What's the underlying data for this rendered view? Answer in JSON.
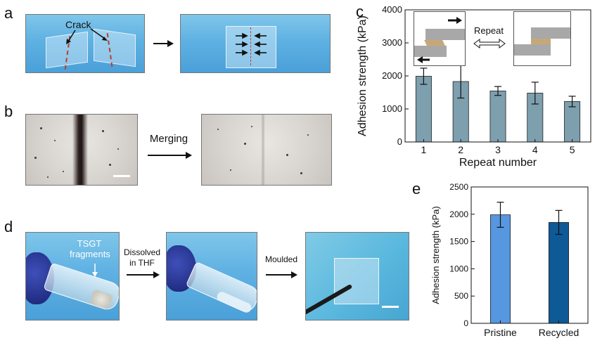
{
  "panels": {
    "a": {
      "letter": "a",
      "crack_label": "Crack"
    },
    "b": {
      "letter": "b",
      "arrow_label": "Merging"
    },
    "c": {
      "letter": "c",
      "inset_label": "Repeat"
    },
    "d": {
      "letter": "d",
      "fragments_label": "TSGT fragments",
      "step1_label": "Dissolved in THF",
      "step2_label": "Moulded"
    },
    "e": {
      "letter": "e"
    }
  },
  "colors": {
    "bar_c": "#7d9fae",
    "pristine": "#5797e0",
    "recycled": "#0d5a97",
    "tape": "#c6a878",
    "substrate": "#a8a8a8"
  },
  "chart_data": [
    {
      "type": "bar",
      "categories": [
        "1",
        "2",
        "3",
        "4",
        "5"
      ],
      "values": [
        1990,
        1830,
        1545,
        1480,
        1225
      ],
      "errors": [
        245,
        500,
        135,
        330,
        160
      ],
      "xlabel": "Repeat number",
      "ylabel": "Adhesion strength (kPa)",
      "ylim": [
        0,
        4000
      ],
      "yticks": [
        0,
        1000,
        2000,
        3000,
        4000
      ]
    },
    {
      "type": "bar",
      "categories": [
        "Pristine",
        "Recycled"
      ],
      "values": [
        1990,
        1850
      ],
      "errors": [
        230,
        220
      ],
      "xlabel": "",
      "ylabel": "Adhesion strength (kPa)",
      "ylim": [
        0,
        2500
      ],
      "yticks": [
        0,
        500,
        1000,
        1500,
        2000,
        2500
      ]
    }
  ]
}
